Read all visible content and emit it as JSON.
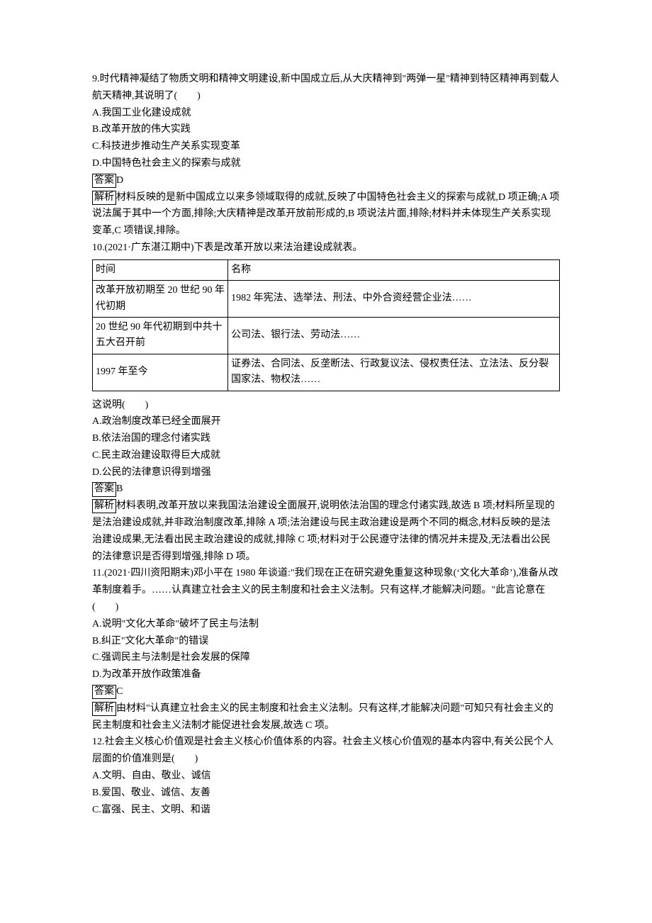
{
  "q9": {
    "stem": "9.时代精神凝结了物质文明和精神文明建设,新中国成立后,从大庆精神到\"两弹一星\"精神到特区精神再到载人航天精神,其说明了(　　)",
    "optA": "A.我国工业化建设成就",
    "optB": "B.改革开放的伟大实践",
    "optC": "C.科技进步推动生产关系实现变革",
    "optD": "D.中国特色社会主义的探索与成就",
    "ansLabel": "答案",
    "ans": "D",
    "expLabel": "解析",
    "exp": "材料反映的是新中国成立以来多领域取得的成就,反映了中国特色社会主义的探索与成就,D 项正确;A 项说法属于其中一个方面,排除;大庆精神是改革开放前形成的,B 项说法片面,排除;材料并未体现生产关系实现变革,C 项错误,排除。"
  },
  "q10": {
    "stem": "10.(2021·广东湛江期中)下表是改革开放以来法治建设成就表。",
    "table": {
      "h0": "时间",
      "h1": "名称",
      "r1c0": "改革开放初期至 20 世纪 90 年代初期",
      "r1c1": "1982 年宪法、选举法、刑法、中外合资经营企业法……",
      "r2c0": "20 世纪 90 年代初期到中共十五大召开前",
      "r2c1": "公司法、银行法、劳动法……",
      "r3c0": "1997 年至今",
      "r3c1": "证券法、合同法、反垄断法、行政复议法、侵权责任法、立法法、反分裂国家法、物权法……"
    },
    "tail": "这说明(　　)",
    "optA": "A.政治制度改革已经全面展开",
    "optB": "B.依法治国的理念付诸实践",
    "optC": "C.民主政治建设取得巨大成就",
    "optD": "D.公民的法律意识得到增强",
    "ansLabel": "答案",
    "ans": "B",
    "expLabel": "解析",
    "exp": "材料表明,改革开放以来我国法治建设全面展开,说明依法治国的理念付诸实践,故选 B 项;材料所呈现的是法治建设成就,并非政治制度改革,排除 A 项;法治建设与民主政治建设是两个不同的概念,材料反映的是法治建设成果,无法看出民主政治建设的成就,排除 C 项;材料对于公民遵守法律的情况并未提及,无法看出公民的法律意识是否得到增强,排除 D 项。"
  },
  "q11": {
    "stem": "11.(2021·四川资阳期末)邓小平在 1980 年谈道:\"我们现在正在研究避免重复这种现象(‘文化大革命’),准备从改革制度着手。……认真建立社会主义的民主制度和社会主义法制。只有这样,才能解决问题。\"此言论意在(　　)",
    "optA": "A.说明\"文化大革命\"破坏了民主与法制",
    "optB": "B.纠正\"文化大革命\"的错误",
    "optC": "C.强调民主与法制是社会发展的保障",
    "optD": "D.为改革开放作政策准备",
    "ansLabel": "答案",
    "ans": "C",
    "expLabel": "解析",
    "exp": "由材料\"认真建立社会主义的民主制度和社会主义法制。只有这样,才能解决问题\"可知只有社会主义的民主制度和社会主义法制才能促进社会发展,故选 C 项。"
  },
  "q12": {
    "stem": "12.社会主义核心价值观是社会主义核心价值体系的内容。社会主义核心价值观的基本内容中,有关公民个人层面的价值准则是(　　)",
    "optA": "A.文明、自由、敬业、诚信",
    "optB": "B.爱国、敬业、诚信、友善",
    "optC": "C.富强、民主、文明、和谐"
  }
}
